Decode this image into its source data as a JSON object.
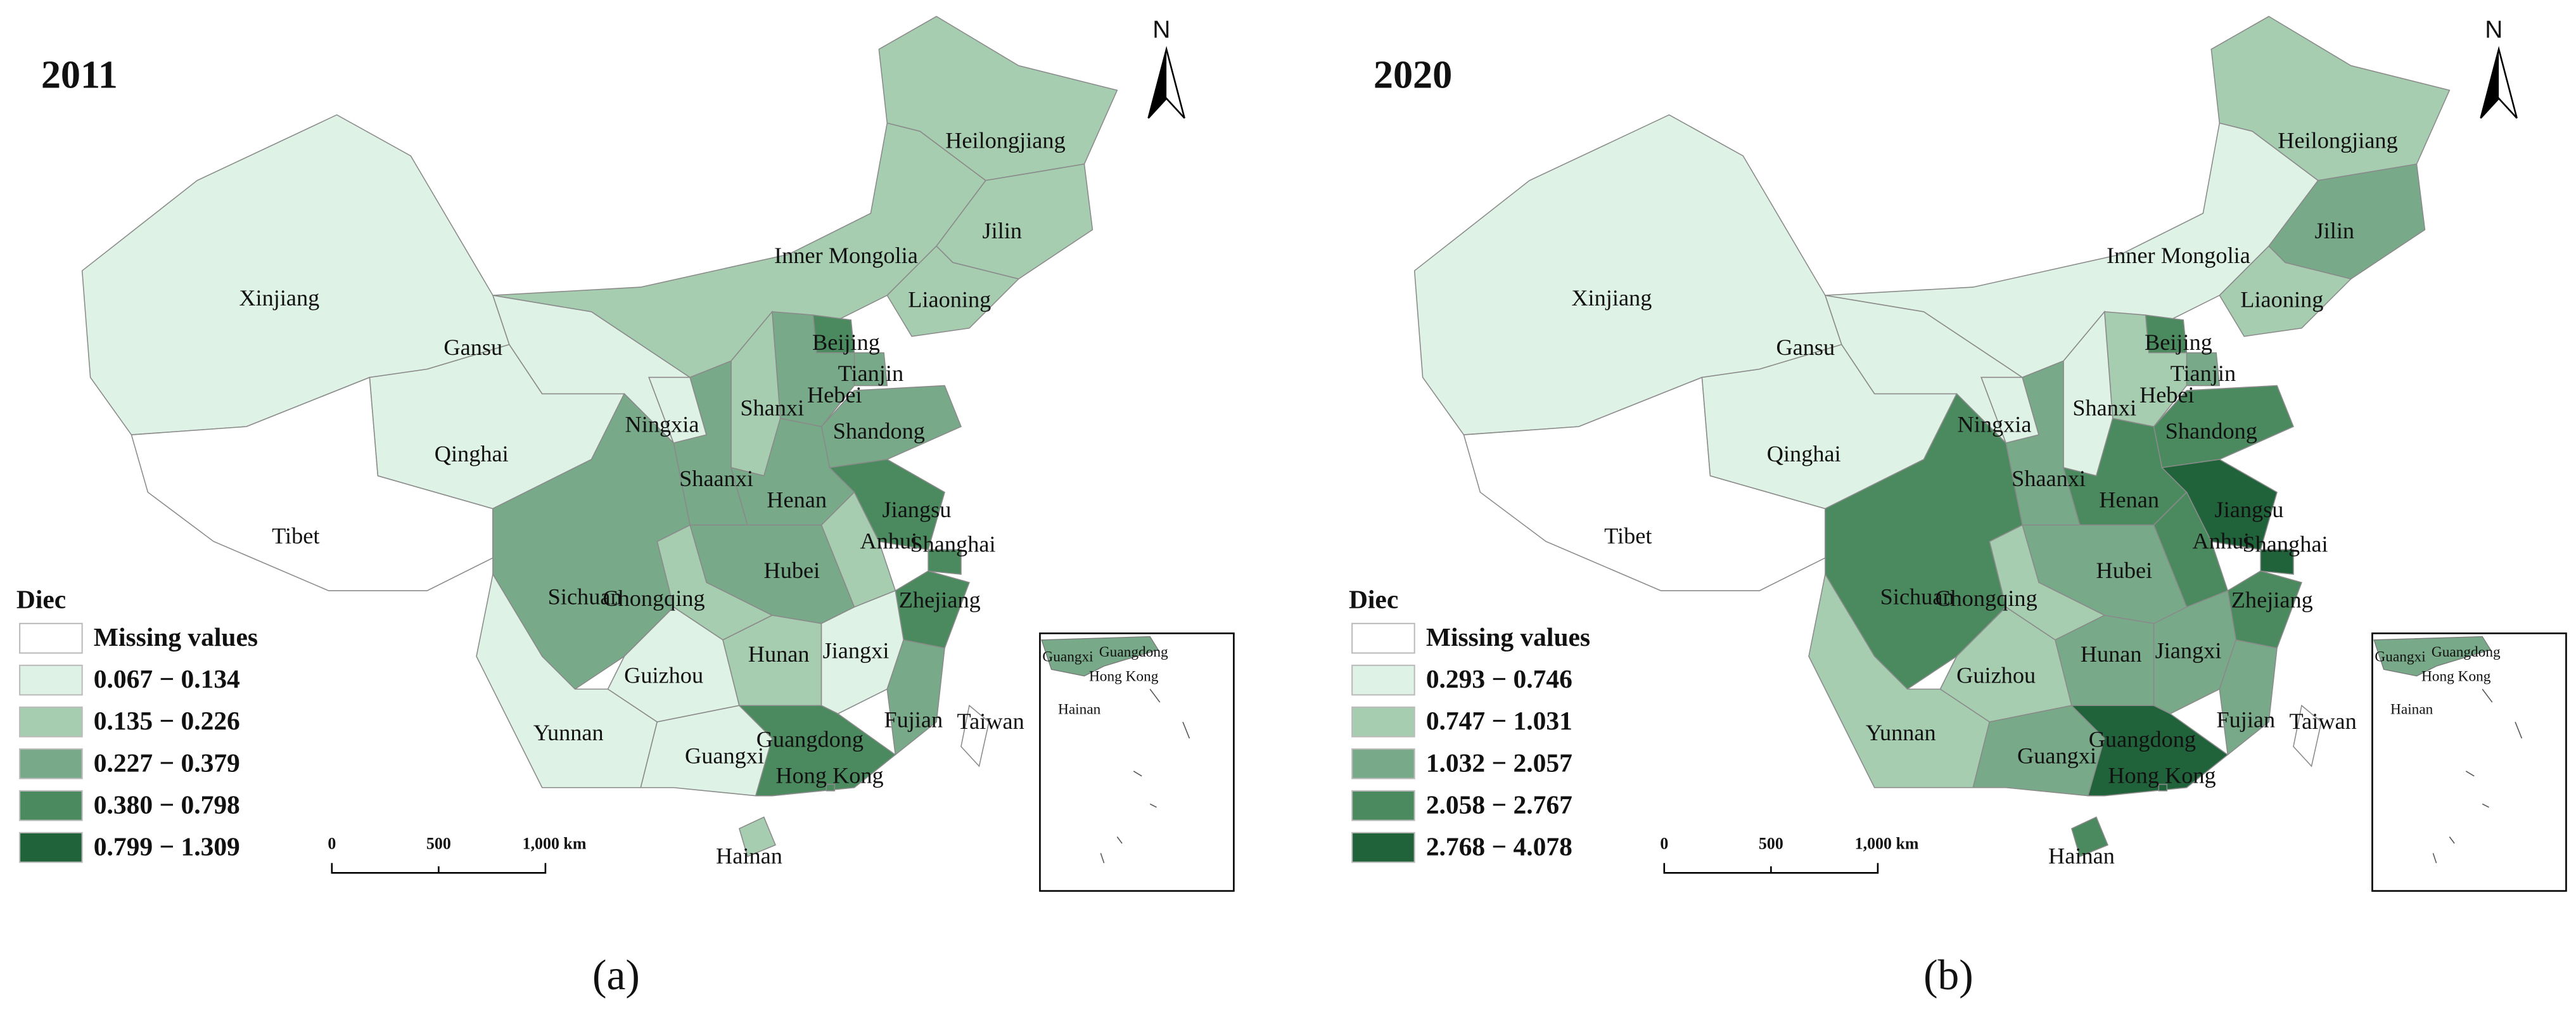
{
  "panels": [
    {
      "title": "2011",
      "caption": "(a)",
      "north": "N",
      "legend_title": "Diec",
      "legend": [
        {
          "label": "Missing values",
          "color": "#ffffff"
        },
        {
          "label": "0.067 − 0.134",
          "color": "#dff2e6"
        },
        {
          "label": "0.135 − 0.226",
          "color": "#a6cdb0"
        },
        {
          "label": "0.227 − 0.379",
          "color": "#78a988"
        },
        {
          "label": "0.380 − 0.798",
          "color": "#4a8a5e"
        },
        {
          "label": "0.799 − 1.309",
          "color": "#20623a"
        }
      ],
      "scalebar_labels": [
        "0",
        "500",
        "1,000 km"
      ],
      "inset_labels": [
        "Guangxi",
        "Guangdong",
        "Hong Kong",
        "Hainan"
      ],
      "regions": [
        {
          "name": "Xinjiang",
          "color": "#dff2e6"
        },
        {
          "name": "Tibet",
          "color": "#ffffff"
        },
        {
          "name": "Qinghai",
          "color": "#dff2e6"
        },
        {
          "name": "Gansu",
          "color": "#dff2e6"
        },
        {
          "name": "Inner Mongolia",
          "color": "#a6cdb0"
        },
        {
          "name": "Heilongjiang",
          "color": "#a6cdb0"
        },
        {
          "name": "Jilin",
          "color": "#a6cdb0"
        },
        {
          "name": "Liaoning",
          "color": "#a6cdb0"
        },
        {
          "name": "Beijing",
          "color": "#4a8a5e"
        },
        {
          "name": "Tianjin",
          "color": "#78a988"
        },
        {
          "name": "Hebei",
          "color": "#78a988"
        },
        {
          "name": "Shanxi",
          "color": "#a6cdb0"
        },
        {
          "name": "Shandong",
          "color": "#78a988"
        },
        {
          "name": "Ningxia",
          "color": "#dff2e6"
        },
        {
          "name": "Shaanxi",
          "color": "#78a988"
        },
        {
          "name": "Henan",
          "color": "#78a988"
        },
        {
          "name": "Jiangsu",
          "color": "#4a8a5e"
        },
        {
          "name": "Shanghai",
          "color": "#4a8a5e"
        },
        {
          "name": "Anhui",
          "color": "#a6cdb0"
        },
        {
          "name": "Zhejiang",
          "color": "#4a8a5e"
        },
        {
          "name": "Hubei",
          "color": "#78a988"
        },
        {
          "name": "Chongqing",
          "color": "#a6cdb0"
        },
        {
          "name": "Sichuan",
          "color": "#78a988"
        },
        {
          "name": "Guizhou",
          "color": "#dff2e6"
        },
        {
          "name": "Yunnan",
          "color": "#dff2e6"
        },
        {
          "name": "Hunan",
          "color": "#a6cdb0"
        },
        {
          "name": "Jiangxi",
          "color": "#dff2e6"
        },
        {
          "name": "Fujian",
          "color": "#78a988"
        },
        {
          "name": "Guangxi",
          "color": "#dff2e6"
        },
        {
          "name": "Guangdong",
          "color": "#4a8a5e"
        },
        {
          "name": "Hong Kong",
          "color": "#4a8a5e"
        },
        {
          "name": "Hainan",
          "color": "#a6cdb0"
        },
        {
          "name": "Taiwan",
          "color": "#ffffff"
        }
      ]
    },
    {
      "title": "2020",
      "caption": "(b)",
      "north": "N",
      "legend_title": "Diec",
      "legend": [
        {
          "label": "Missing values",
          "color": "#ffffff"
        },
        {
          "label": "0.293 − 0.746",
          "color": "#dff2e6"
        },
        {
          "label": "0.747 − 1.031",
          "color": "#a6cdb0"
        },
        {
          "label": "1.032 − 2.057",
          "color": "#78a988"
        },
        {
          "label": "2.058 − 2.767",
          "color": "#4a8a5e"
        },
        {
          "label": "2.768 − 4.078",
          "color": "#20623a"
        }
      ],
      "scalebar_labels": [
        "0",
        "500",
        "1,000 km"
      ],
      "inset_labels": [
        "Guangxi",
        "Guangdong",
        "Hong Kong",
        "Hainan"
      ],
      "regions": [
        {
          "name": "Xinjiang",
          "color": "#dff2e6"
        },
        {
          "name": "Tibet",
          "color": "#ffffff"
        },
        {
          "name": "Qinghai",
          "color": "#dff2e6"
        },
        {
          "name": "Gansu",
          "color": "#dff2e6"
        },
        {
          "name": "Inner Mongolia",
          "color": "#dff2e6"
        },
        {
          "name": "Heilongjiang",
          "color": "#a6cdb0"
        },
        {
          "name": "Jilin",
          "color": "#78a988"
        },
        {
          "name": "Liaoning",
          "color": "#a6cdb0"
        },
        {
          "name": "Beijing",
          "color": "#4a8a5e"
        },
        {
          "name": "Tianjin",
          "color": "#78a988"
        },
        {
          "name": "Hebei",
          "color": "#a6cdb0"
        },
        {
          "name": "Shanxi",
          "color": "#dff2e6"
        },
        {
          "name": "Shandong",
          "color": "#4a8a5e"
        },
        {
          "name": "Ningxia",
          "color": "#dff2e6"
        },
        {
          "name": "Shaanxi",
          "color": "#78a988"
        },
        {
          "name": "Henan",
          "color": "#4a8a5e"
        },
        {
          "name": "Jiangsu",
          "color": "#20623a"
        },
        {
          "name": "Shanghai",
          "color": "#20623a"
        },
        {
          "name": "Anhui",
          "color": "#4a8a5e"
        },
        {
          "name": "Zhejiang",
          "color": "#4a8a5e"
        },
        {
          "name": "Hubei",
          "color": "#78a988"
        },
        {
          "name": "Chongqing",
          "color": "#a6cdb0"
        },
        {
          "name": "Sichuan",
          "color": "#4a8a5e"
        },
        {
          "name": "Guizhou",
          "color": "#a6cdb0"
        },
        {
          "name": "Yunnan",
          "color": "#a6cdb0"
        },
        {
          "name": "Hunan",
          "color": "#78a988"
        },
        {
          "name": "Jiangxi",
          "color": "#78a988"
        },
        {
          "name": "Fujian",
          "color": "#78a988"
        },
        {
          "name": "Guangxi",
          "color": "#78a988"
        },
        {
          "name": "Guangdong",
          "color": "#20623a"
        },
        {
          "name": "Hong Kong",
          "color": "#20623a"
        },
        {
          "name": "Hainan",
          "color": "#4a8a5e"
        },
        {
          "name": "Taiwan",
          "color": "#ffffff"
        }
      ]
    }
  ]
}
